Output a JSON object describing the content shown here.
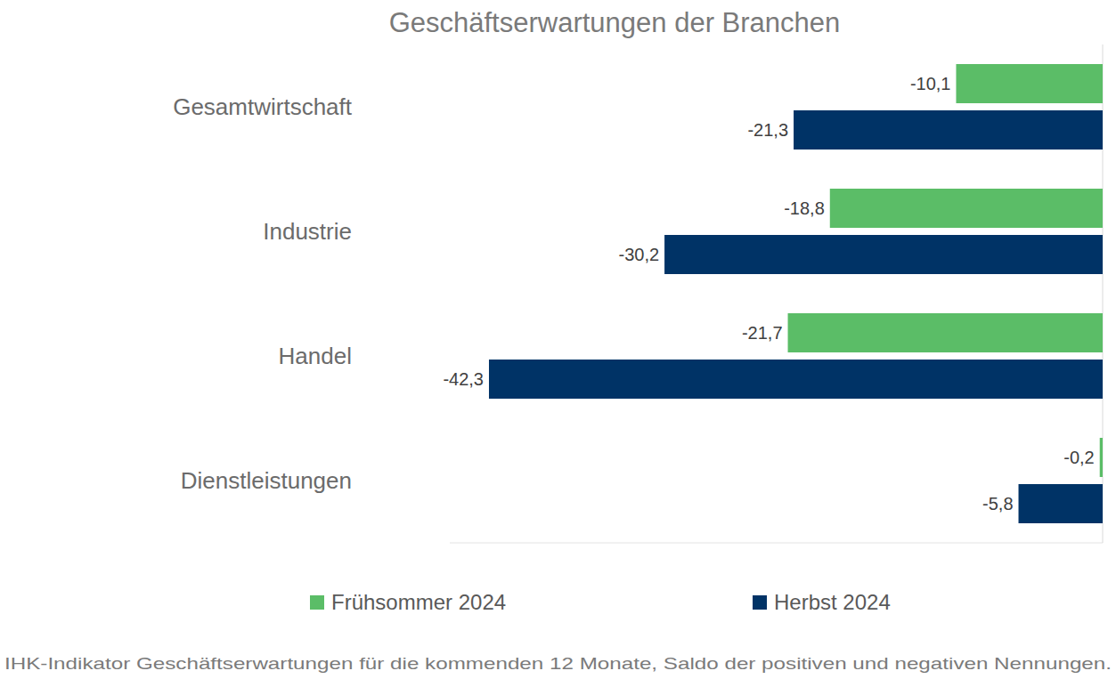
{
  "chart_data": {
    "type": "bar",
    "orientation": "horizontal",
    "title": "Geschäftserwartungen der Branchen",
    "caption": "IHK-Indikator Geschäftserwartungen für die kommenden 12 Monate, Saldo der positiven und negativen Nennungen.",
    "categories": [
      "Gesamtwirtschaft",
      "Industrie",
      "Handel",
      "Dienstleistungen"
    ],
    "series": [
      {
        "name": "Frühsommer 2024",
        "color": "#5bbd67",
        "values": [
          -10.1,
          -18.8,
          -21.7,
          -0.2
        ],
        "value_labels": [
          "-10,1",
          "-18,8",
          "-21,7",
          "-0,2"
        ]
      },
      {
        "name": "Herbst 2024",
        "color": "#003366",
        "values": [
          -21.3,
          -30.2,
          -42.3,
          -5.8
        ],
        "value_labels": [
          "-21,3",
          "-30,2",
          "-42,3",
          "-5,8"
        ]
      }
    ],
    "xlim": [
      -45,
      0
    ],
    "xticks": [
      0
    ],
    "tick_labels": false,
    "grid": false,
    "data_labels": true,
    "legend": "bottom"
  }
}
